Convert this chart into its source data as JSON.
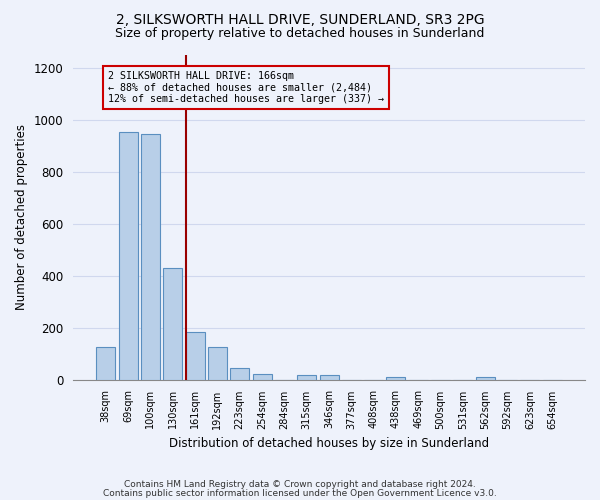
{
  "title1": "2, SILKSWORTH HALL DRIVE, SUNDERLAND, SR3 2PG",
  "title2": "Size of property relative to detached houses in Sunderland",
  "xlabel": "Distribution of detached houses by size in Sunderland",
  "ylabel": "Number of detached properties",
  "categories": [
    "38sqm",
    "69sqm",
    "100sqm",
    "130sqm",
    "161sqm",
    "192sqm",
    "223sqm",
    "254sqm",
    "284sqm",
    "315sqm",
    "346sqm",
    "377sqm",
    "408sqm",
    "438sqm",
    "469sqm",
    "500sqm",
    "531sqm",
    "562sqm",
    "592sqm",
    "623sqm",
    "654sqm"
  ],
  "values": [
    125,
    955,
    945,
    430,
    185,
    125,
    45,
    22,
    0,
    18,
    18,
    0,
    0,
    9,
    0,
    0,
    0,
    9,
    0,
    0,
    0
  ],
  "bar_color": "#b8cfe8",
  "bar_edge_color": "#5a8fc0",
  "annotation_line1": "2 SILKSWORTH HALL DRIVE: 166sqm",
  "annotation_line2": "← 88% of detached houses are smaller (2,484)",
  "annotation_line3": "12% of semi-detached houses are larger (337) →",
  "annotation_box_color": "#cc0000",
  "line_color": "#990000",
  "ylim": [
    0,
    1250
  ],
  "yticks": [
    0,
    200,
    400,
    600,
    800,
    1000,
    1200
  ],
  "footer_line1": "Contains HM Land Registry data © Crown copyright and database right 2024.",
  "footer_line2": "Contains public sector information licensed under the Open Government Licence v3.0.",
  "bg_color": "#eef2fb",
  "grid_color": "#d0d8ee"
}
